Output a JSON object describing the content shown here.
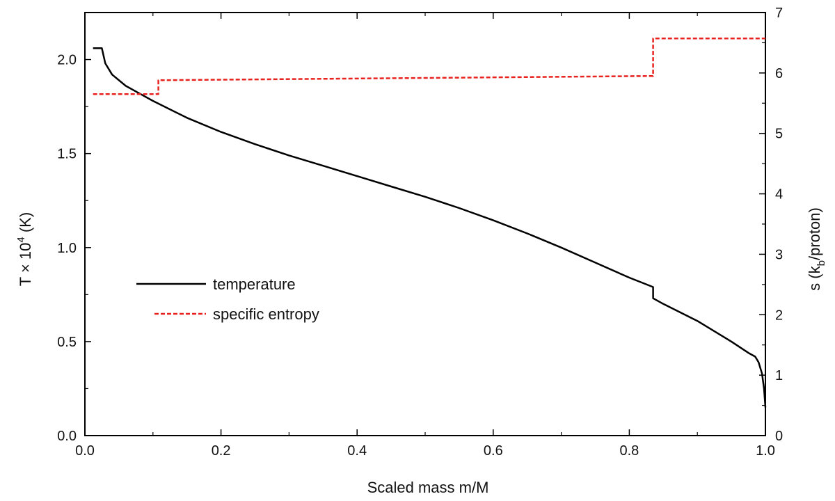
{
  "chart_data": {
    "type": "line",
    "xlabel": "Scaled mass m/M",
    "ylabel_left": {
      "main": "T × 10",
      "sup": "4",
      "unit": " (K)"
    },
    "ylabel_right": {
      "pre": "s (k",
      "sub": "b",
      "post": "/proton)"
    },
    "xlim": [
      0.0,
      1.0
    ],
    "ylim_left": [
      0.0,
      2.25
    ],
    "ylim_right": [
      0,
      7
    ],
    "x_ticks": [
      "0.0",
      "0.2",
      "0.4",
      "0.6",
      "0.8",
      "1.0"
    ],
    "y_left_ticks": [
      "0.0",
      "0.5",
      "1.0",
      "1.5",
      "2.0"
    ],
    "y_right_ticks": [
      "0",
      "1",
      "2",
      "3",
      "4",
      "5",
      "6",
      "7"
    ],
    "grid": false,
    "legend_position": "center-left",
    "series": [
      {
        "name": "temperature",
        "axis": "left",
        "color": "#000000",
        "style": "solid",
        "points": [
          [
            0.012,
            2.06
          ],
          [
            0.025,
            2.06
          ],
          [
            0.03,
            1.98
          ],
          [
            0.04,
            1.92
          ],
          [
            0.06,
            1.86
          ],
          [
            0.08,
            1.82
          ],
          [
            0.1,
            1.78
          ],
          [
            0.15,
            1.69
          ],
          [
            0.2,
            1.615
          ],
          [
            0.25,
            1.55
          ],
          [
            0.3,
            1.49
          ],
          [
            0.35,
            1.435
          ],
          [
            0.4,
            1.38
          ],
          [
            0.45,
            1.325
          ],
          [
            0.5,
            1.27
          ],
          [
            0.55,
            1.21
          ],
          [
            0.6,
            1.145
          ],
          [
            0.65,
            1.075
          ],
          [
            0.7,
            1.0
          ],
          [
            0.75,
            0.92
          ],
          [
            0.8,
            0.84
          ],
          [
            0.835,
            0.79
          ],
          [
            0.835,
            0.73
          ],
          [
            0.85,
            0.7
          ],
          [
            0.9,
            0.61
          ],
          [
            0.95,
            0.5
          ],
          [
            0.975,
            0.44
          ],
          [
            0.985,
            0.42
          ],
          [
            0.99,
            0.39
          ],
          [
            0.995,
            0.33
          ],
          [
            0.998,
            0.25
          ],
          [
            1.0,
            0.15
          ]
        ]
      },
      {
        "name": "specific entropy",
        "axis": "right",
        "color": "#e8231f",
        "style": "dashed",
        "points": [
          [
            0.012,
            5.65
          ],
          [
            0.108,
            5.65
          ],
          [
            0.108,
            5.88
          ],
          [
            0.835,
            5.95
          ],
          [
            0.835,
            6.57
          ],
          [
            1.0,
            6.57
          ]
        ]
      }
    ]
  }
}
